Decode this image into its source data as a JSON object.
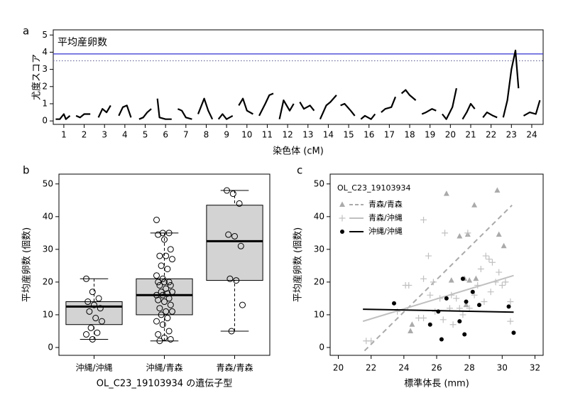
{
  "chart_data": [
    {
      "type": "line",
      "label": "a",
      "title": "平均産卵数",
      "xlabel": "染色体 (cM)",
      "ylabel": "尤度スコア",
      "color": "#000000",
      "x": [
        0.6,
        0.8,
        1.0,
        1.1,
        1.3,
        null,
        1.6,
        1.8,
        2.0,
        2.3,
        null,
        2.7,
        2.9,
        3.1,
        3.3,
        null,
        3.7,
        3.9,
        4.1,
        4.3,
        null,
        4.7,
        4.9,
        5.1,
        5.3,
        null,
        5.6,
        5.7,
        6.0,
        6.3,
        null,
        6.6,
        6.8,
        7.0,
        7.3,
        null,
        7.6,
        7.9,
        8.1,
        8.3,
        null,
        8.6,
        8.8,
        9.0,
        9.3,
        null,
        9.6,
        9.8,
        10.0,
        10.3,
        null,
        10.6,
        10.9,
        11.1,
        11.3,
        null,
        11.6,
        11.8,
        12.1,
        12.3,
        null,
        12.6,
        12.8,
        13.1,
        13.3,
        null,
        13.6,
        13.9,
        14.1,
        14.4,
        null,
        14.6,
        14.8,
        15.1,
        15.3,
        null,
        15.6,
        15.8,
        16.1,
        16.3,
        null,
        16.6,
        16.8,
        17.1,
        17.3,
        null,
        17.6,
        17.8,
        18.0,
        18.3,
        null,
        18.6,
        18.8,
        19.1,
        19.3,
        null,
        19.6,
        19.8,
        20.1,
        20.3,
        null,
        20.6,
        20.8,
        21.0,
        21.2,
        null,
        21.6,
        21.8,
        22.1,
        22.3,
        null,
        22.6,
        22.8,
        23.0,
        23.2,
        23.35,
        null,
        23.6,
        23.9,
        24.2,
        24.4
      ],
      "values": [
        0.1,
        0.1,
        0.4,
        0.1,
        0.3,
        null,
        0.3,
        0.2,
        0.4,
        0.4,
        null,
        0.2,
        0.7,
        0.5,
        0.9,
        null,
        0.3,
        0.8,
        0.9,
        0.2,
        null,
        0.1,
        0.2,
        0.5,
        0.7,
        null,
        1.3,
        0.2,
        0.1,
        0.1,
        null,
        0.7,
        0.6,
        0.2,
        0.1,
        null,
        0.4,
        1.3,
        0.6,
        0.1,
        null,
        0.1,
        0.4,
        0.1,
        0.3,
        null,
        0.9,
        1.3,
        0.6,
        0.4,
        null,
        0.3,
        1.0,
        1.5,
        1.6,
        null,
        0.1,
        1.2,
        0.6,
        1.0,
        null,
        1.1,
        0.7,
        0.9,
        0.6,
        null,
        0.1,
        0.9,
        1.1,
        1.5,
        null,
        0.9,
        1.0,
        0.6,
        0.3,
        null,
        0.1,
        0.3,
        0.1,
        0.4,
        null,
        0.5,
        0.7,
        0.8,
        1.4,
        null,
        1.6,
        1.8,
        1.5,
        1.2,
        null,
        0.4,
        0.5,
        0.7,
        0.6,
        null,
        0.4,
        0.1,
        0.8,
        1.9,
        null,
        0.1,
        0.5,
        1.0,
        0.7,
        null,
        0.2,
        0.5,
        0.3,
        0.2,
        null,
        0.2,
        1.2,
        3.0,
        4.1,
        1.9,
        null,
        0.3,
        0.5,
        0.4,
        1.2
      ],
      "xlim": [
        0.48,
        24.56
      ],
      "ylim": [
        -0.2,
        5.3
      ],
      "xticks": [
        1,
        2,
        3,
        4,
        5,
        6,
        7,
        8,
        9,
        10,
        11,
        12,
        13,
        14,
        15,
        16,
        17,
        18,
        19,
        20,
        21,
        22,
        23,
        24
      ],
      "yticks": [
        0,
        1,
        2,
        3,
        4,
        5
      ],
      "thresholds": [
        {
          "value": 3.9,
          "color": "#3030d0",
          "style": "solid"
        },
        {
          "value": 3.5,
          "color": "#7070a0",
          "style": "dotted"
        }
      ]
    },
    {
      "type": "box",
      "label": "b",
      "xlabel": "OL_C23_19103934 の遺伝子型",
      "ylabel": "平均産卵数 (個数)",
      "color": "#d3d3d3",
      "categories": [
        "沖縄/沖縄",
        "沖縄/青森",
        "青森/青森"
      ],
      "whislo": [
        2.5,
        2,
        5
      ],
      "q1": [
        7,
        10,
        20.5
      ],
      "med": [
        12.5,
        16,
        32.5
      ],
      "q3": [
        14,
        21,
        43.5
      ],
      "whishi": [
        21,
        35,
        48
      ],
      "points": [
        [
          21,
          17,
          15,
          14,
          13,
          12,
          11,
          9,
          8,
          6,
          4.5,
          4,
          2.5
        ],
        [
          39,
          35,
          35,
          34.5,
          33,
          30,
          28,
          28,
          27,
          25,
          24,
          22,
          21,
          20,
          20,
          20,
          19,
          19,
          18,
          17,
          17,
          16.5,
          16,
          16,
          15,
          14.5,
          14,
          13,
          12,
          11,
          11,
          10,
          9,
          8,
          7,
          5,
          4,
          3,
          2.5,
          2
        ],
        [
          48,
          47,
          44,
          34.5,
          34,
          31,
          21,
          20.5,
          13,
          5
        ]
      ],
      "ylim": [
        -2.4,
        53
      ],
      "yticks": [
        0,
        10,
        20,
        30,
        40,
        50
      ]
    },
    {
      "type": "scatter",
      "label": "c",
      "title": "OL_C23_19103934",
      "xlabel": "標準体長 (mm)",
      "ylabel": "平均産卵数 (個数)",
      "legend": "top-left",
      "xlim": [
        19.5,
        32.5
      ],
      "ylim": [
        -2.4,
        53
      ],
      "xticks": [
        20,
        22,
        24,
        26,
        28,
        30,
        32
      ],
      "yticks": [
        0,
        10,
        20,
        30,
        40,
        50
      ],
      "series": [
        {
          "name": "青森/青森",
          "color": "#aaaaaa",
          "marker": "triangle",
          "line_style": "dashed",
          "x": [
            26.6,
            29.7,
            28.3,
            27.4,
            27.9,
            29.8,
            30.1,
            27.7,
            28.4,
            28.0,
            26.9,
            24.5,
            27.8,
            24.4
          ],
          "values": [
            47,
            48,
            43.5,
            34,
            34.5,
            34.5,
            31,
            21,
            21,
            20.5,
            20.5,
            7,
            13,
            5
          ],
          "fit_x": [
            21.6,
            30.6
          ],
          "fit_y": [
            -1,
            43.5
          ]
        },
        {
          "name": "青森/沖縄",
          "color": "#c0c0c0",
          "marker": "plus",
          "line_style": "solid",
          "x": [
            22.0,
            21.7,
            23.6,
            24.1,
            24.3,
            24.9,
            25.2,
            25.2,
            25.5,
            25.8,
            25.6,
            25.9,
            26.2,
            26.4,
            26.5,
            26.8,
            26.9,
            27.2,
            27.4,
            27.6,
            27.9,
            28.0,
            28.3,
            28.5,
            28.7,
            28.9,
            29.0,
            29.2,
            29.4,
            29.3,
            29.6,
            29.8,
            30.0,
            30.2,
            30.5,
            30.5,
            27.0,
            25.2
          ],
          "values": [
            2,
            2,
            11,
            19,
            19,
            9,
            39,
            21,
            28,
            20,
            16,
            11,
            15,
            8.5,
            35,
            12,
            16,
            15,
            12,
            10,
            35,
            12,
            16,
            19,
            24,
            14,
            28,
            27,
            26,
            17,
            20,
            23,
            19,
            20,
            14,
            8,
            7,
            9
          ],
          "fit_x": [
            21.5,
            30.7
          ],
          "fit_y": [
            8,
            22
          ]
        },
        {
          "name": "沖縄/沖縄",
          "color": "#000000",
          "marker": "circle",
          "line_style": "solid",
          "x": [
            23.4,
            25.6,
            26.1,
            26.6,
            27.4,
            27.6,
            27.8,
            28.2,
            27.7,
            28.6,
            30.4,
            30.7,
            26.3
          ],
          "values": [
            13.5,
            7,
            11,
            15,
            8,
            21,
            14,
            17,
            4,
            13,
            12.5,
            4.5,
            2.5
          ],
          "fit_x": [
            21.5,
            30.7
          ],
          "fit_y": [
            11.7,
            10.8
          ]
        }
      ]
    }
  ]
}
